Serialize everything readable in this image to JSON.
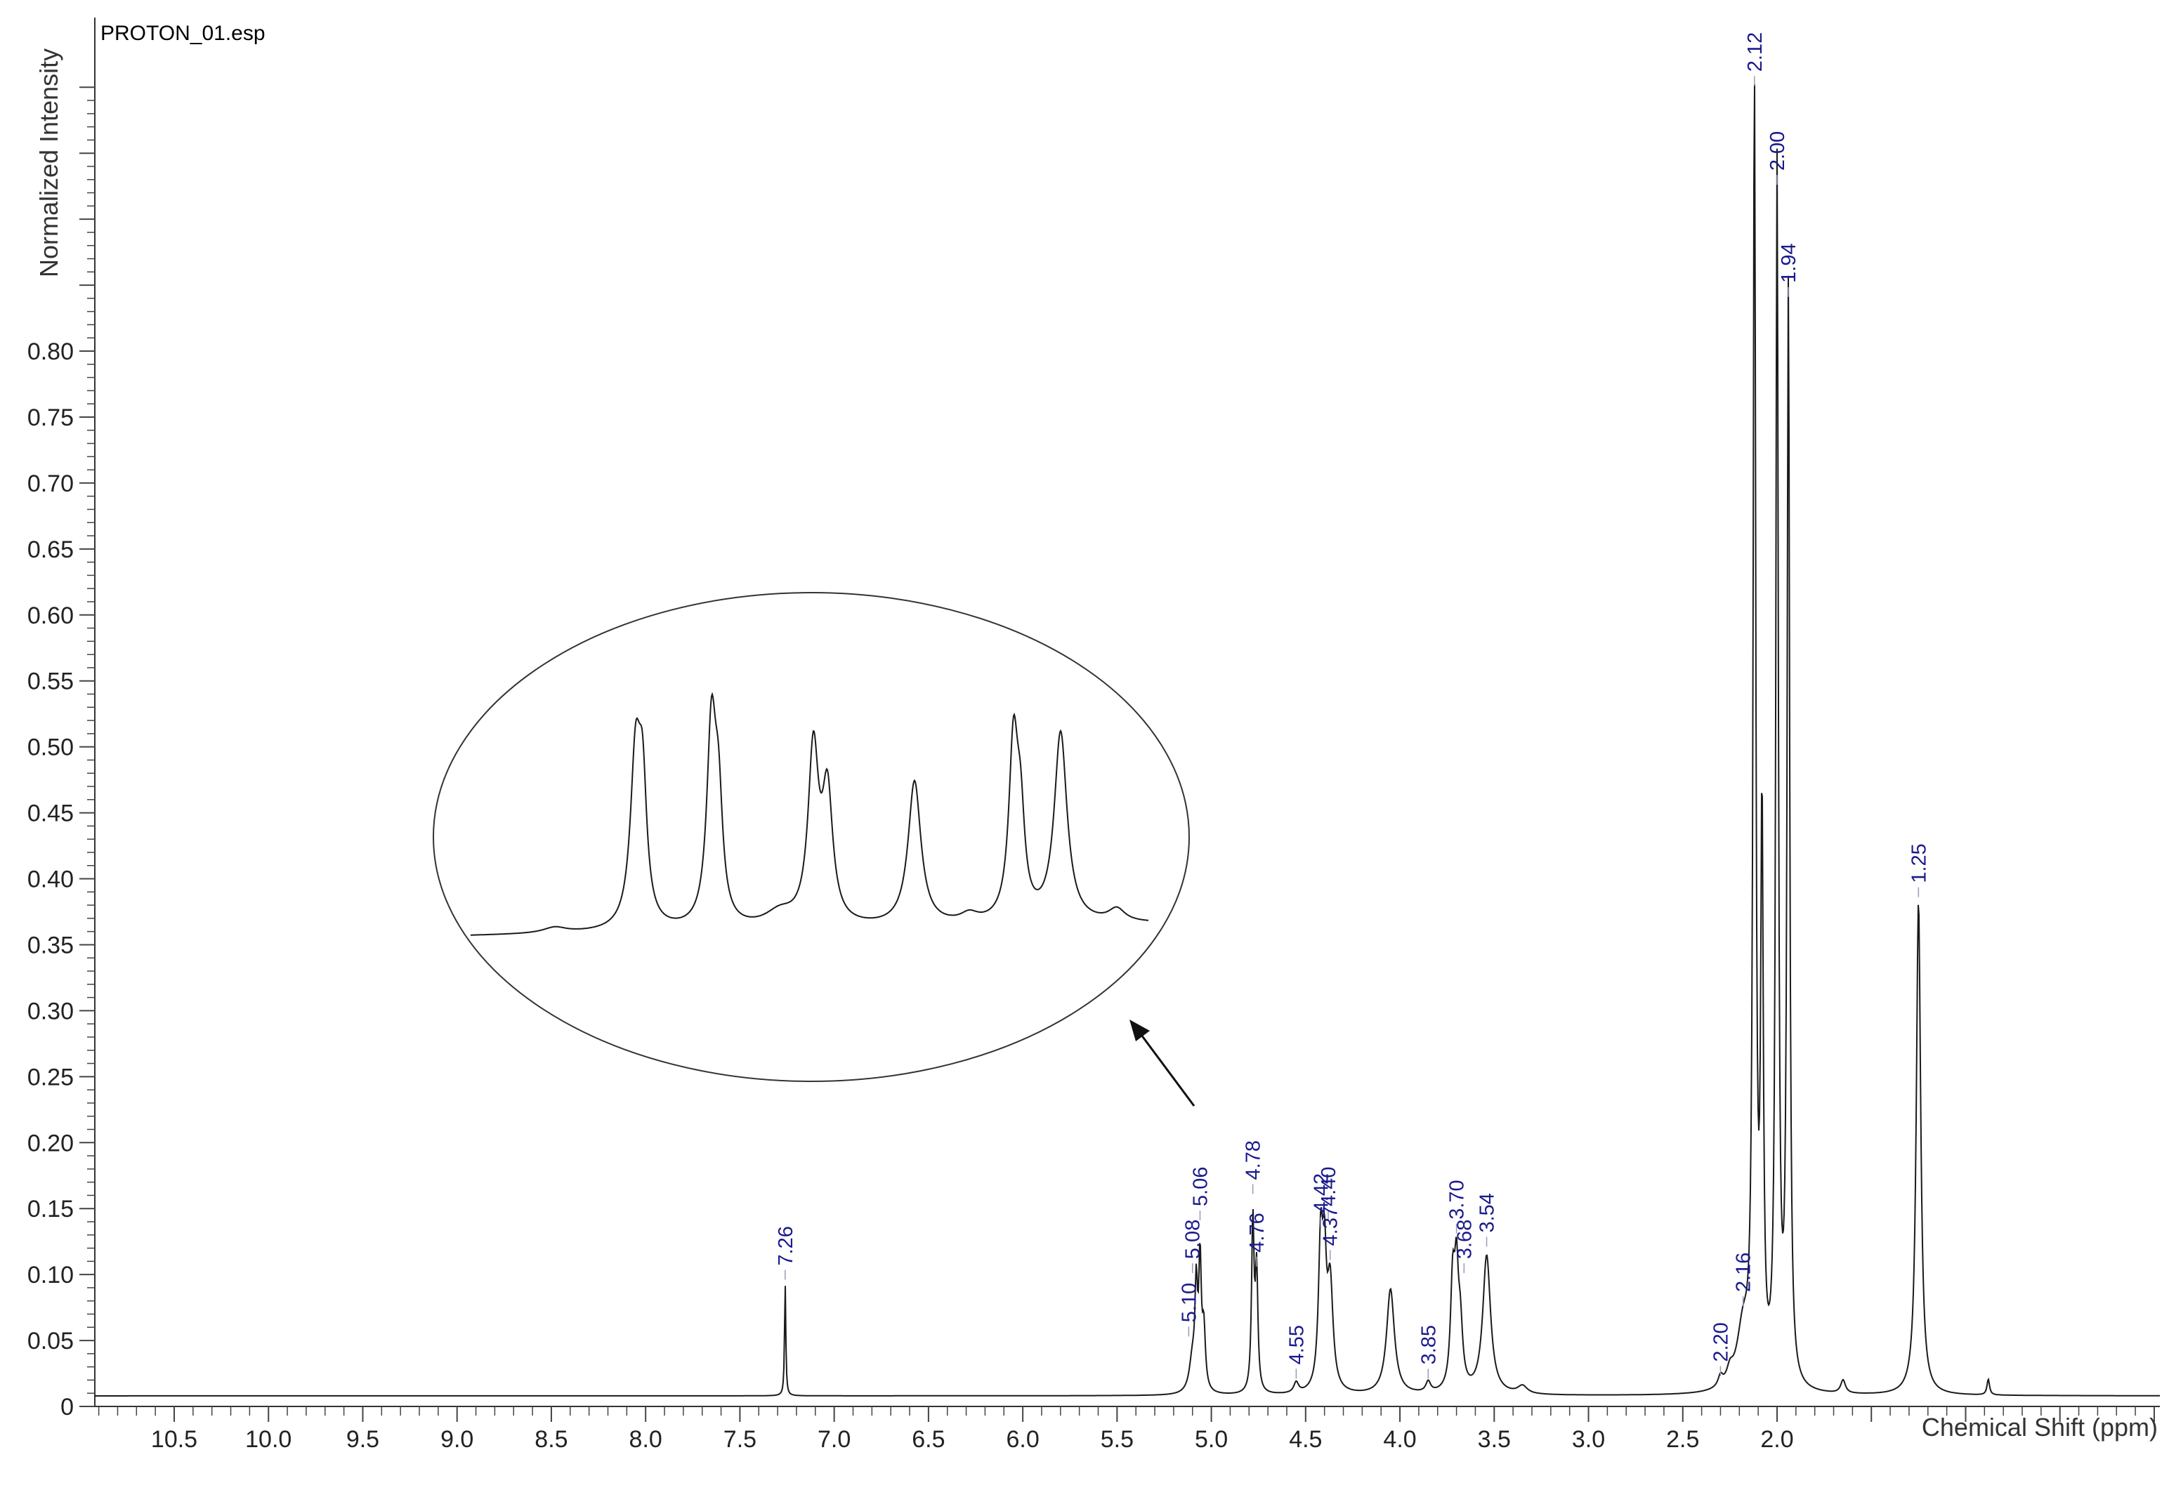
{
  "file_label": "PROTON_01.esp",
  "chart_data": {
    "type": "line",
    "title": "",
    "xlabel": "Chemical Shift (ppm)",
    "ylabel": "Normalized Intensity",
    "x_reversed": true,
    "xlim": [
      11.0,
      0.0
    ],
    "ylim": [
      -0.02,
      1.05
    ],
    "x_ticks": [
      "10.5",
      "10.0",
      "9.5",
      "9.0",
      "8.5",
      "8.0",
      "7.5",
      "7.0",
      "6.5",
      "6.0",
      "5.5",
      "5.0",
      "4.5",
      "4.0",
      "3.5",
      "3.0",
      "2.5",
      "2.0"
    ],
    "y_ticks": [
      "0",
      "0.05",
      "0.10",
      "0.15",
      "0.20",
      "0.25",
      "0.30",
      "0.35",
      "0.40",
      "0.45",
      "0.50",
      "0.55",
      "0.60",
      "0.65",
      "0.70",
      "0.75",
      "0.80"
    ],
    "baseline": 0.008,
    "series_color": "#1a1a1a",
    "label_color": "#1a1a8c",
    "peaks": [
      {
        "x": 7.26,
        "h": 0.085,
        "w": 0.004
      },
      {
        "x": 5.1,
        "h": 0.025,
        "w": 0.02
      },
      {
        "x": 5.08,
        "h": 0.072,
        "w": 0.008
      },
      {
        "x": 5.06,
        "h": 0.095,
        "w": 0.008
      },
      {
        "x": 5.04,
        "h": 0.045,
        "w": 0.01
      },
      {
        "x": 4.78,
        "h": 0.13,
        "w": 0.008
      },
      {
        "x": 4.76,
        "h": 0.09,
        "w": 0.008
      },
      {
        "x": 4.55,
        "h": 0.008,
        "w": 0.015
      },
      {
        "x": 4.42,
        "h": 0.11,
        "w": 0.014
      },
      {
        "x": 4.4,
        "h": 0.08,
        "w": 0.012
      },
      {
        "x": 4.37,
        "h": 0.08,
        "w": 0.018
      },
      {
        "x": 4.05,
        "h": 0.08,
        "w": 0.025
      },
      {
        "x": 3.85,
        "h": 0.008,
        "w": 0.015
      },
      {
        "x": 3.72,
        "h": 0.08,
        "w": 0.014
      },
      {
        "x": 3.7,
        "h": 0.075,
        "w": 0.012
      },
      {
        "x": 3.68,
        "h": 0.045,
        "w": 0.015
      },
      {
        "x": 3.54,
        "h": 0.105,
        "w": 0.025
      },
      {
        "x": 3.35,
        "h": 0.006,
        "w": 0.03
      },
      {
        "x": 2.3,
        "h": 0.008,
        "w": 0.015
      },
      {
        "x": 2.25,
        "h": 0.01,
        "w": 0.02
      },
      {
        "x": 2.18,
        "h": 0.045,
        "w": 0.04
      },
      {
        "x": 2.12,
        "h": 1.0,
        "w": 0.008
      },
      {
        "x": 2.08,
        "h": 0.42,
        "w": 0.008
      },
      {
        "x": 2.0,
        "h": 0.92,
        "w": 0.008
      },
      {
        "x": 1.94,
        "h": 0.83,
        "w": 0.008
      },
      {
        "x": 1.65,
        "h": 0.01,
        "w": 0.015
      },
      {
        "x": 1.25,
        "h": 0.375,
        "w": 0.014
      },
      {
        "x": 0.88,
        "h": 0.012,
        "w": 0.008
      }
    ],
    "peak_labels": [
      {
        "text": "7.26",
        "x": 7.26,
        "tip_y": 0.095
      },
      {
        "text": "5.10",
        "x": 5.12,
        "tip_y": 0.052
      },
      {
        "text": "5.08",
        "x": 5.1,
        "tip_y": 0.1
      },
      {
        "text": "5.06",
        "x": 5.06,
        "tip_y": 0.14
      },
      {
        "text": "4.78",
        "x": 4.78,
        "tip_y": 0.16
      },
      {
        "text": "4.76",
        "x": 4.76,
        "tip_y": 0.105
      },
      {
        "text": "4.55",
        "x": 4.55,
        "tip_y": 0.02
      },
      {
        "text": "4.42",
        "x": 4.42,
        "tip_y": 0.135
      },
      {
        "text": "4.40",
        "x": 4.38,
        "tip_y": 0.14
      },
      {
        "text": "4.37",
        "x": 4.37,
        "tip_y": 0.11
      },
      {
        "text": "3.85",
        "x": 3.85,
        "tip_y": 0.02
      },
      {
        "text": "3.70",
        "x": 3.7,
        "tip_y": 0.13
      },
      {
        "text": "3.68",
        "x": 3.66,
        "tip_y": 0.1
      },
      {
        "text": "3.54",
        "x": 3.54,
        "tip_y": 0.12
      },
      {
        "text": "2.20",
        "x": 2.3,
        "tip_y": 0.022
      },
      {
        "text": "2.16",
        "x": 2.18,
        "tip_y": 0.075
      },
      {
        "text": "2.12",
        "x": 2.12,
        "tip_y": 1.0
      },
      {
        "text": "2.00",
        "x": 2.0,
        "tip_y": 0.925
      },
      {
        "text": "1.94",
        "x": 1.94,
        "tip_y": 0.84
      },
      {
        "text": "1.25",
        "x": 1.25,
        "tip_y": 0.385
      }
    ]
  }
}
